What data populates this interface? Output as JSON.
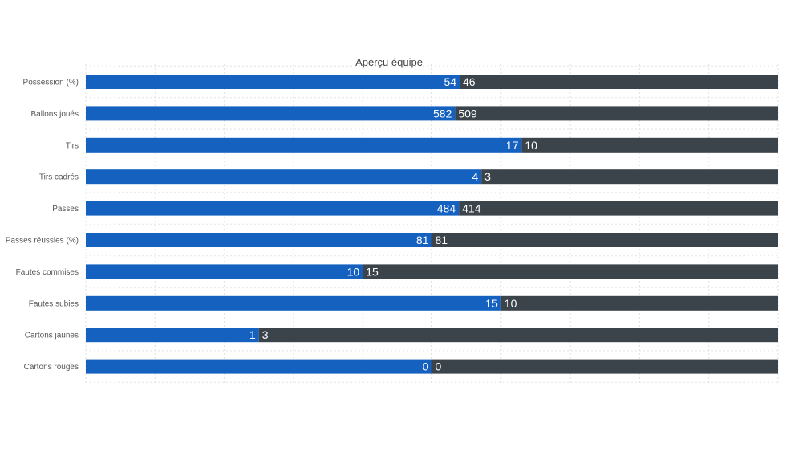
{
  "chart_data": {
    "type": "bar",
    "orientation": "horizontal",
    "stacked": "percent",
    "title": "Aperçu équipe",
    "categories": [
      "Possession (%)",
      "Ballons joués",
      "Tirs",
      "Tirs cadrés",
      "Passes",
      "Passes réussies (%)",
      "Fautes commises",
      "Fautes subies",
      "Cartons jaunes",
      "Cartons rouges"
    ],
    "series": [
      {
        "color": "#1561c0",
        "values": [
          54,
          582,
          17,
          4,
          484,
          81,
          10,
          15,
          1,
          0
        ]
      },
      {
        "color": "#3b434b",
        "values": [
          46,
          509,
          10,
          3,
          414,
          81,
          15,
          10,
          3,
          0
        ]
      }
    ],
    "grid": true,
    "legend": "none"
  }
}
